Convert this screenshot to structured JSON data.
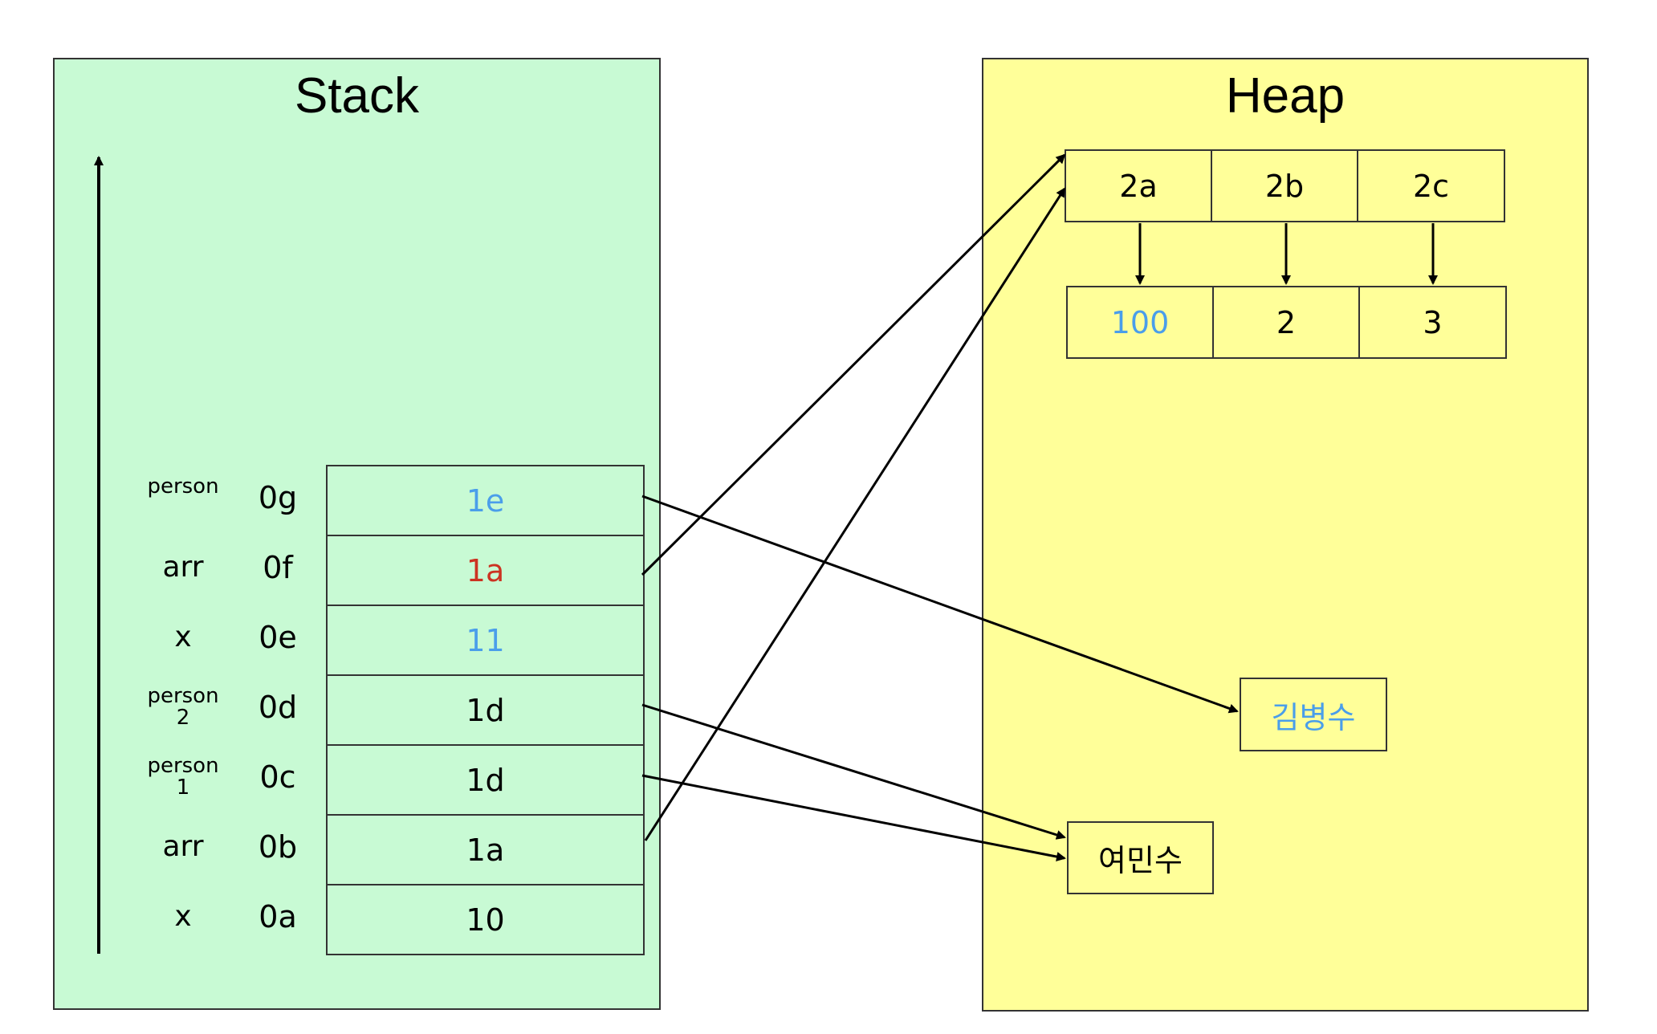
{
  "stack": {
    "title": "Stack",
    "frames": [
      {
        "name": "person",
        "addr": "0g",
        "value": "1e",
        "value_color": "#4a9eea"
      },
      {
        "name": "arr",
        "addr": "0f",
        "value": "1a",
        "value_color": "#cc3322"
      },
      {
        "name": "x",
        "addr": "0e",
        "value": "11",
        "value_color": "#4a9eea"
      },
      {
        "name": "person\n2",
        "addr": "0d",
        "value": "1d",
        "value_color": "#000000"
      },
      {
        "name": "person\n1",
        "addr": "0c",
        "value": "1d",
        "value_color": "#000000"
      },
      {
        "name": "arr",
        "addr": "0b",
        "value": "1a",
        "value_color": "#000000"
      },
      {
        "name": "x",
        "addr": "0a",
        "value": "10",
        "value_color": "#000000"
      }
    ]
  },
  "heap": {
    "title": "Heap",
    "array_addresses": [
      "2a",
      "2b",
      "2c"
    ],
    "array_values": [
      {
        "value": "100",
        "color": "#4a9eea"
      },
      {
        "value": "2",
        "color": "#000000"
      },
      {
        "value": "3",
        "color": "#000000"
      }
    ],
    "object_kim": {
      "value": "김병수",
      "color": "#4a9eea"
    },
    "object_yeo": {
      "value": "여민수",
      "color": "#000000"
    }
  },
  "colors": {
    "stack_bg": "#c8fad4",
    "heap_bg": "#ffff99",
    "accent_blue": "#4a9eea",
    "accent_red": "#cc3322"
  }
}
